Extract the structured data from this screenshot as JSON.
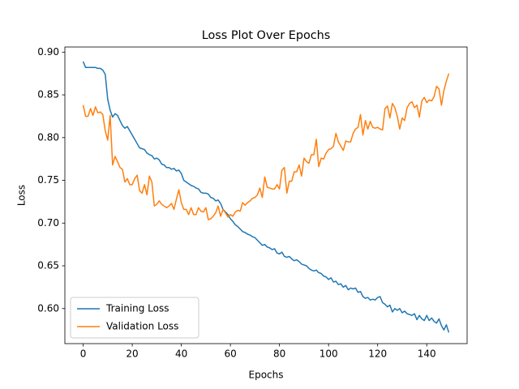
{
  "chart_data": {
    "type": "line",
    "title": "Loss Plot Over Epochs",
    "xlabel": "Epochs",
    "ylabel": "Loss",
    "x": [
      0,
      1,
      2,
      3,
      4,
      5,
      6,
      7,
      8,
      9,
      10,
      11,
      12,
      13,
      14,
      15,
      16,
      17,
      18,
      19,
      20,
      21,
      22,
      23,
      24,
      25,
      26,
      27,
      28,
      29,
      30,
      31,
      32,
      33,
      34,
      35,
      36,
      37,
      38,
      39,
      40,
      41,
      42,
      43,
      44,
      45,
      46,
      47,
      48,
      49,
      50,
      51,
      52,
      53,
      54,
      55,
      56,
      57,
      58,
      59,
      60,
      61,
      62,
      63,
      64,
      65,
      66,
      67,
      68,
      69,
      70,
      71,
      72,
      73,
      74,
      75,
      76,
      77,
      78,
      79,
      80,
      81,
      82,
      83,
      84,
      85,
      86,
      87,
      88,
      89,
      90,
      91,
      92,
      93,
      94,
      95,
      96,
      97,
      98,
      99,
      100,
      101,
      102,
      103,
      104,
      105,
      106,
      107,
      108,
      109,
      110,
      111,
      112,
      113,
      114,
      115,
      116,
      117,
      118,
      119,
      120,
      121,
      122,
      123,
      124,
      125,
      126,
      127,
      128,
      129,
      130,
      131,
      132,
      133,
      134,
      135,
      136,
      137,
      138,
      139,
      140,
      141,
      142,
      143,
      144,
      145,
      146,
      147,
      148,
      149
    ],
    "series": [
      {
        "name": "Training Loss",
        "color": "#1f77b4",
        "values": [
          0.889,
          0.882,
          0.882,
          0.882,
          0.882,
          0.882,
          0.881,
          0.881,
          0.879,
          0.874,
          0.845,
          0.832,
          0.824,
          0.828,
          0.826,
          0.82,
          0.814,
          0.811,
          0.813,
          0.808,
          0.803,
          0.798,
          0.793,
          0.788,
          0.787,
          0.786,
          0.782,
          0.78,
          0.779,
          0.775,
          0.776,
          0.774,
          0.769,
          0.768,
          0.765,
          0.765,
          0.763,
          0.764,
          0.761,
          0.762,
          0.758,
          0.75,
          0.748,
          0.746,
          0.744,
          0.743,
          0.741,
          0.74,
          0.736,
          0.735,
          0.735,
          0.734,
          0.73,
          0.729,
          0.726,
          0.727,
          0.723,
          0.716,
          0.713,
          0.71,
          0.705,
          0.702,
          0.698,
          0.696,
          0.693,
          0.69,
          0.689,
          0.687,
          0.686,
          0.684,
          0.683,
          0.68,
          0.677,
          0.674,
          0.675,
          0.672,
          0.671,
          0.669,
          0.67,
          0.665,
          0.664,
          0.666,
          0.661,
          0.66,
          0.661,
          0.658,
          0.656,
          0.657,
          0.655,
          0.652,
          0.651,
          0.65,
          0.647,
          0.645,
          0.644,
          0.645,
          0.642,
          0.641,
          0.638,
          0.637,
          0.634,
          0.636,
          0.631,
          0.632,
          0.628,
          0.629,
          0.625,
          0.627,
          0.622,
          0.624,
          0.623,
          0.624,
          0.619,
          0.62,
          0.614,
          0.612,
          0.613,
          0.61,
          0.611,
          0.61,
          0.613,
          0.614,
          0.607,
          0.605,
          0.602,
          0.604,
          0.596,
          0.6,
          0.598,
          0.6,
          0.595,
          0.597,
          0.594,
          0.593,
          0.592,
          0.594,
          0.587,
          0.592,
          0.588,
          0.586,
          0.592,
          0.586,
          0.589,
          0.585,
          0.583,
          0.588,
          0.58,
          0.575,
          0.581,
          0.572
        ]
      },
      {
        "name": "Validation Loss",
        "color": "#ff7f0e",
        "values": [
          0.838,
          0.825,
          0.825,
          0.834,
          0.826,
          0.836,
          0.829,
          0.83,
          0.827,
          0.808,
          0.797,
          0.826,
          0.768,
          0.778,
          0.772,
          0.765,
          0.763,
          0.748,
          0.752,
          0.745,
          0.745,
          0.752,
          0.756,
          0.738,
          0.735,
          0.745,
          0.733,
          0.755,
          0.748,
          0.72,
          0.722,
          0.726,
          0.722,
          0.72,
          0.718,
          0.72,
          0.723,
          0.716,
          0.728,
          0.739,
          0.724,
          0.716,
          0.716,
          0.71,
          0.718,
          0.71,
          0.71,
          0.718,
          0.714,
          0.713,
          0.718,
          0.704,
          0.705,
          0.708,
          0.712,
          0.72,
          0.708,
          0.716,
          0.712,
          0.707,
          0.71,
          0.708,
          0.713,
          0.715,
          0.714,
          0.724,
          0.721,
          0.724,
          0.726,
          0.729,
          0.73,
          0.733,
          0.741,
          0.73,
          0.754,
          0.742,
          0.741,
          0.74,
          0.74,
          0.745,
          0.74,
          0.762,
          0.765,
          0.735,
          0.749,
          0.749,
          0.76,
          0.76,
          0.768,
          0.755,
          0.776,
          0.772,
          0.77,
          0.78,
          0.78,
          0.798,
          0.766,
          0.776,
          0.775,
          0.782,
          0.786,
          0.787,
          0.79,
          0.805,
          0.795,
          0.79,
          0.785,
          0.796,
          0.795,
          0.795,
          0.805,
          0.81,
          0.812,
          0.827,
          0.803,
          0.82,
          0.81,
          0.819,
          0.812,
          0.811,
          0.812,
          0.81,
          0.809,
          0.834,
          0.837,
          0.823,
          0.84,
          0.835,
          0.825,
          0.81,
          0.823,
          0.82,
          0.835,
          0.84,
          0.842,
          0.835,
          0.838,
          0.824,
          0.843,
          0.847,
          0.841,
          0.844,
          0.843,
          0.848,
          0.86,
          0.857,
          0.838,
          0.855,
          0.866,
          0.875
        ]
      }
    ],
    "xlim": [
      -7.45,
      156.45
    ],
    "xticks": [
      0,
      20,
      40,
      60,
      80,
      100,
      120,
      140
    ],
    "ylim": [
      0.559,
      0.906
    ],
    "yticks": [
      {
        "value": 0.6,
        "label": "0.60"
      },
      0.65,
      {
        "value": 0.7,
        "label": "0.70"
      },
      0.75,
      {
        "value": 0.8,
        "label": "0.80"
      },
      0.85,
      {
        "value": 0.9,
        "label": "0.90"
      }
    ],
    "legend": "lower left",
    "grid": false
  }
}
